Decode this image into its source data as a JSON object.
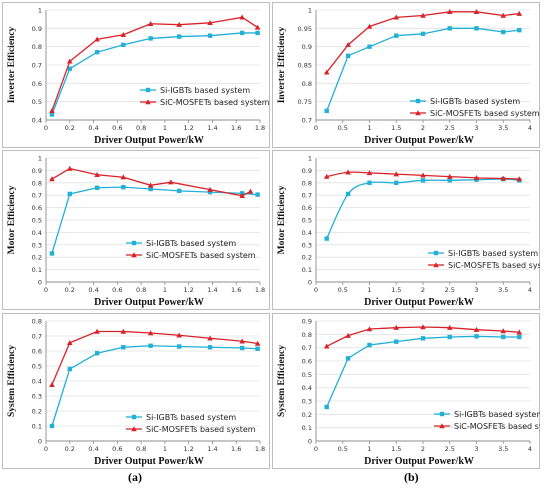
{
  "captions": {
    "a": "(a)",
    "b": "(b)"
  },
  "colors": {
    "si": "#21b0d6",
    "sic": "#d9232a",
    "grid": "#e2e2e2",
    "axis": "#8c8c8c",
    "frame": "#bdbdbd"
  },
  "chart_data": [
    {
      "type": "line",
      "ylabel": "Inverter Efficiency",
      "xlabel": "Driver Output  Power/kW",
      "xlim": [
        0,
        1.8
      ],
      "xticks": [
        "0",
        "0.2",
        "0.4",
        "0.6",
        "0.8",
        "1",
        "1.2",
        "1.4",
        "1.6",
        "1.8"
      ],
      "ylim": [
        0.4,
        1
      ],
      "yticks": [
        "0.4",
        "0.5",
        "0.6",
        "0.7",
        "0.8",
        "0.9",
        "1"
      ],
      "grid": "horizontal",
      "legend": "center-right",
      "series": [
        {
          "name": "Si-IGBTs based system",
          "x": [
            0.05,
            0.2,
            0.43,
            0.65,
            0.88,
            1.12,
            1.38,
            1.65,
            1.78
          ],
          "values": [
            0.43,
            0.68,
            0.77,
            0.81,
            0.845,
            0.855,
            0.86,
            0.875,
            0.875
          ]
        },
        {
          "name": "SiC-MOSFETs based system",
          "x": [
            0.05,
            0.2,
            0.43,
            0.65,
            0.88,
            1.12,
            1.38,
            1.65,
            1.78
          ],
          "values": [
            0.45,
            0.72,
            0.84,
            0.865,
            0.925,
            0.92,
            0.93,
            0.96,
            0.905
          ]
        }
      ]
    },
    {
      "type": "line",
      "ylabel": "Inverter Efficiency",
      "xlabel": "Driver Output  Power/kW",
      "xlim": [
        0,
        4
      ],
      "xticks": [
        "0",
        "0.5",
        "1",
        "1.5",
        "2",
        "2.5",
        "3",
        "3.5",
        "4"
      ],
      "ylim": [
        0.7,
        1
      ],
      "yticks": [
        "0.7",
        "0.75",
        "0.8",
        "0.85",
        "0.9",
        "0.95",
        "1"
      ],
      "grid": "horizontal",
      "legend": "center-right",
      "series": [
        {
          "name": "Si-IGBTs based system",
          "x": [
            0.2,
            0.6,
            1.0,
            1.5,
            2.0,
            2.5,
            3.0,
            3.5,
            3.8
          ],
          "values": [
            0.725,
            0.875,
            0.9,
            0.93,
            0.935,
            0.95,
            0.95,
            0.94,
            0.945
          ]
        },
        {
          "name": "SiC-MOSFETs based system",
          "x": [
            0.2,
            0.6,
            1.0,
            1.5,
            2.0,
            2.5,
            3.0,
            3.5,
            3.8
          ],
          "values": [
            0.83,
            0.905,
            0.955,
            0.98,
            0.985,
            0.995,
            0.995,
            0.985,
            0.99
          ]
        }
      ]
    },
    {
      "type": "line",
      "ylabel": "Motor Efficiency",
      "xlabel": "Driver Output  Power/kW",
      "xlim": [
        0,
        1.8
      ],
      "xticks": [
        "0",
        "0.2",
        "0.4",
        "0.6",
        "0.8",
        "1",
        "1.2",
        "1.4",
        "1.6",
        "1.8"
      ],
      "ylim": [
        0,
        1
      ],
      "yticks": [
        "0",
        "0.1",
        "0.2",
        "0.3",
        "0.4",
        "0.5",
        "0.6",
        "0.7",
        "0.8",
        "0.9",
        "1"
      ],
      "grid": "horizontal",
      "legend": "bottom-right",
      "series": [
        {
          "name": "Si-IGBTs based system",
          "x": [
            0.05,
            0.2,
            0.43,
            0.65,
            0.88,
            1.12,
            1.38,
            1.65,
            1.78
          ],
          "values": [
            0.23,
            0.71,
            0.76,
            0.765,
            0.75,
            0.735,
            0.725,
            0.715,
            0.705
          ]
        },
        {
          "name": "SiC-MOSFETs based system",
          "x": [
            0.05,
            0.2,
            0.43,
            0.65,
            0.88,
            1.05,
            1.38,
            1.65,
            1.72
          ],
          "values": [
            0.83,
            0.915,
            0.865,
            0.845,
            0.78,
            0.805,
            0.745,
            0.695,
            0.73
          ]
        }
      ]
    },
    {
      "type": "line",
      "ylabel": "Motor Efficiency",
      "xlabel": "Driver Output  Power/kW",
      "xlim": [
        0,
        4
      ],
      "xticks": [
        "0",
        "0.5",
        "1",
        "1.5",
        "2",
        "2.5",
        "3",
        "3.5",
        "4"
      ],
      "ylim": [
        0,
        1
      ],
      "yticks": [
        "0",
        "0.1",
        "0.2",
        "0.3",
        "0.4",
        "0.5",
        "0.6",
        "0.7",
        "0.8",
        "0.9",
        "1"
      ],
      "grid": "horizontal",
      "legend": "bottom-right",
      "smooth": true,
      "series": [
        {
          "name": "Si-IGBTs based system",
          "x": [
            0.2,
            0.6,
            1.0,
            1.5,
            2.0,
            2.5,
            3.0,
            3.5,
            3.8
          ],
          "values": [
            0.35,
            0.71,
            0.8,
            0.8,
            0.82,
            0.82,
            0.825,
            0.83,
            0.82
          ]
        },
        {
          "name": "SiC-MOSFETs based system",
          "x": [
            0.2,
            0.6,
            1.0,
            1.5,
            2.0,
            2.5,
            3.0,
            3.5,
            3.8
          ],
          "values": [
            0.85,
            0.885,
            0.88,
            0.87,
            0.86,
            0.85,
            0.84,
            0.835,
            0.83
          ]
        }
      ]
    },
    {
      "type": "line",
      "ylabel": "System Efficiency",
      "xlabel": "Driver Output  Power/kW",
      "xlim": [
        0,
        1.8
      ],
      "xticks": [
        "0",
        "0.2",
        "0.4",
        "0.6",
        "0.8",
        "1",
        "1.2",
        "1.4",
        "1.6",
        "1.8"
      ],
      "ylim": [
        0,
        0.8
      ],
      "yticks": [
        "0",
        "0.1",
        "0.2",
        "0.3",
        "0.4",
        "0.5",
        "0.6",
        "0.7",
        "0.8"
      ],
      "grid": "horizontal",
      "legend": "bottom-right",
      "series": [
        {
          "name": "Si-IGBTs based system",
          "x": [
            0.05,
            0.2,
            0.43,
            0.65,
            0.88,
            1.12,
            1.38,
            1.65,
            1.78
          ],
          "values": [
            0.1,
            0.48,
            0.585,
            0.625,
            0.635,
            0.63,
            0.625,
            0.62,
            0.615
          ]
        },
        {
          "name": "SiC-MOSFETs based system",
          "x": [
            0.05,
            0.2,
            0.43,
            0.65,
            0.88,
            1.12,
            1.38,
            1.65,
            1.78
          ],
          "values": [
            0.375,
            0.655,
            0.73,
            0.73,
            0.72,
            0.705,
            0.685,
            0.665,
            0.65
          ]
        }
      ]
    },
    {
      "type": "line",
      "ylabel": "System Efficiency",
      "xlabel": "Driver Output  Power/kW",
      "xlim": [
        0,
        4
      ],
      "xticks": [
        "0",
        "0.5",
        "1",
        "1.5",
        "2",
        "2.5",
        "3",
        "3.5",
        "4"
      ],
      "ylim": [
        0,
        0.9
      ],
      "yticks": [
        "0",
        "0.1",
        "0.2",
        "0.3",
        "0.4",
        "0.5",
        "0.6",
        "0.7",
        "0.8",
        "0.9"
      ],
      "grid": "horizontal",
      "legend": "bottom-right",
      "series": [
        {
          "name": "Si-IGBTs based system",
          "x": [
            0.2,
            0.6,
            1.0,
            1.5,
            2.0,
            2.5,
            3.0,
            3.5,
            3.8
          ],
          "values": [
            0.255,
            0.62,
            0.72,
            0.745,
            0.77,
            0.78,
            0.785,
            0.78,
            0.78
          ]
        },
        {
          "name": "SiC-MOSFETs based system",
          "x": [
            0.2,
            0.6,
            1.0,
            1.5,
            2.0,
            2.5,
            3.0,
            3.5,
            3.8
          ],
          "values": [
            0.71,
            0.79,
            0.84,
            0.85,
            0.855,
            0.85,
            0.835,
            0.825,
            0.815
          ]
        }
      ]
    }
  ]
}
